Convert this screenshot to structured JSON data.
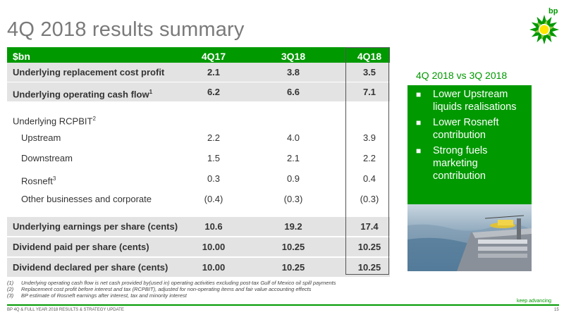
{
  "title": "4Q 2018 results summary",
  "logo": {
    "text": "bp",
    "icon": "bp-helios-logo-icon"
  },
  "table": {
    "header": {
      "label": "$bn",
      "cols": [
        "4Q17",
        "3Q18",
        "4Q18"
      ]
    },
    "rows": [
      {
        "label": "Underlying replacement cost profit",
        "values": [
          "2.1",
          "3.8",
          "3.5"
        ]
      },
      {
        "label": "Underlying operating cash flow",
        "sup": "1",
        "values": [
          "6.2",
          "6.6",
          "7.1"
        ]
      },
      {
        "label": "Underlying RCPBIT",
        "sup": "2"
      },
      {
        "label": "Upstream",
        "values": [
          "2.2",
          "4.0",
          "3.9"
        ]
      },
      {
        "label": "Downstream",
        "values": [
          "1.5",
          "2.1",
          "2.2"
        ]
      },
      {
        "label": "Rosneft",
        "sup": "3",
        "values": [
          "0.3",
          "0.9",
          "0.4"
        ]
      },
      {
        "label": "Other businesses and corporate",
        "values": [
          "(0.4)",
          "(0.3)",
          "(0.3)"
        ]
      },
      {
        "label": "Underlying earnings per share (cents)",
        "values": [
          "10.6",
          "19.2",
          "17.4"
        ]
      },
      {
        "label": "Dividend paid per share (cents)",
        "values": [
          "10.00",
          "10.25",
          "10.25"
        ]
      },
      {
        "label": "Dividend declared per share (cents)",
        "values": [
          "10.00",
          "10.25",
          "10.25"
        ]
      }
    ]
  },
  "sidebar": {
    "title": "4Q 2018 vs 3Q 2018",
    "bullets": [
      "Lower Upstream liquids realisations",
      "Lower Rosneft contribution",
      "Strong fuels marketing contribution"
    ]
  },
  "footnotes": [
    {
      "num": "(1)",
      "text": "Underlying operating cash flow is net cash provided by(used in) operating activities excluding post-tax Gulf of Mexico oil spill payments"
    },
    {
      "num": "(2)",
      "text": "Replacement cost profit before interest and tax (RCPBIT), adjusted for non-operating items and fair value accounting effects"
    },
    {
      "num": "(3)",
      "text": "BP estimate of Rosneft earnings after interest, tax and minority interest"
    }
  ],
  "tagline": "keep advancing",
  "footer": "BP 4Q & FULL YEAR 2018 RESULTS & STRATEGY UPDATE",
  "page_number": "15",
  "colors": {
    "accent": "#009900",
    "row_gray": "#e3e3e3"
  }
}
